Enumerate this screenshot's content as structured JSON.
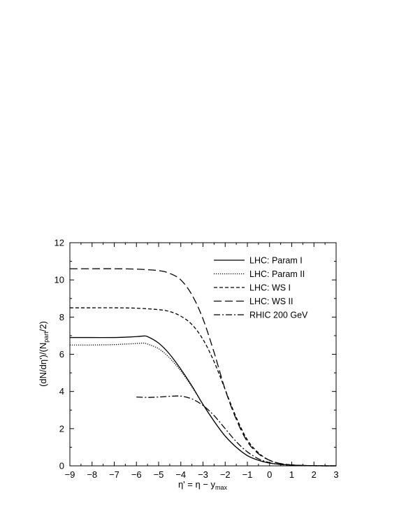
{
  "chart_data": {
    "type": "line",
    "xlim": [
      -9,
      3
    ],
    "ylim": [
      0,
      12
    ],
    "x_ticks": [
      "−9",
      "−8",
      "−7",
      "−6",
      "−5",
      "−4",
      "−3",
      "−2",
      "−1",
      "0",
      "1",
      "2",
      "3"
    ],
    "y_ticks": [
      "0",
      "2",
      "4",
      "6",
      "8",
      "10",
      "12"
    ],
    "xlabel": "η' = η − y",
    "xlabel_sub": "max",
    "ylabel_pre": "(dN/dη')/(N",
    "ylabel_sub": "part",
    "ylabel_post": "/2)",
    "grid": false,
    "legend_position": "top-right",
    "series": [
      {
        "name": "LHC: Param I",
        "dash": "solid",
        "x": [
          -9,
          -8,
          -7,
          -6.5,
          -6,
          -5.7,
          -5.5,
          -5,
          -4.5,
          -4,
          -3.5,
          -3,
          -2.5,
          -2,
          -1.5,
          -1,
          -0.5,
          0,
          0.5,
          1,
          1.5,
          2,
          2.5,
          3
        ],
        "y": [
          6.9,
          6.9,
          6.9,
          6.92,
          6.95,
          6.98,
          6.95,
          6.6,
          6.0,
          5.2,
          4.3,
          3.3,
          2.4,
          1.6,
          1.0,
          0.55,
          0.3,
          0.15,
          0.08,
          0.04,
          0.02,
          0.01,
          0.0,
          0.0
        ]
      },
      {
        "name": "LHC: Param II",
        "dash": "dotted",
        "x": [
          -9,
          -8,
          -7,
          -6.5,
          -6,
          -5.7,
          -5.5,
          -5,
          -4.5,
          -4,
          -3.5,
          -3,
          -2.5,
          -2,
          -1.5,
          -1,
          -0.5,
          0,
          0.5,
          1,
          1.5,
          2,
          2.5,
          3
        ],
        "y": [
          6.5,
          6.5,
          6.52,
          6.55,
          6.58,
          6.6,
          6.55,
          6.3,
          5.8,
          5.1,
          4.25,
          3.3,
          2.4,
          1.6,
          1.0,
          0.55,
          0.3,
          0.15,
          0.08,
          0.04,
          0.02,
          0.01,
          0.0,
          0.0
        ]
      },
      {
        "name": "LHC: WS I",
        "dash": "short-dash",
        "x": [
          -9,
          -8,
          -7,
          -6,
          -5,
          -4.5,
          -4,
          -3.5,
          -3,
          -2.5,
          -2,
          -1.5,
          -1,
          -0.5,
          0,
          0.5,
          1,
          1.5,
          2,
          2.5,
          3
        ],
        "y": [
          8.5,
          8.5,
          8.5,
          8.48,
          8.4,
          8.3,
          8.05,
          7.6,
          6.8,
          5.6,
          4.1,
          2.6,
          1.4,
          0.7,
          0.3,
          0.12,
          0.05,
          0.02,
          0.01,
          0.0,
          0.0
        ]
      },
      {
        "name": "LHC: WS II",
        "dash": "long-dash",
        "x": [
          -9,
          -8,
          -7,
          -6,
          -5,
          -4.5,
          -4,
          -3.5,
          -3,
          -2.5,
          -2,
          -1.5,
          -1,
          -0.5,
          0,
          0.5,
          1,
          1.5,
          2,
          2.5,
          3
        ],
        "y": [
          10.6,
          10.6,
          10.6,
          10.58,
          10.5,
          10.35,
          10.0,
          9.2,
          7.9,
          6.1,
          4.1,
          2.5,
          1.3,
          0.65,
          0.3,
          0.12,
          0.05,
          0.02,
          0.01,
          0.0,
          0.0
        ]
      },
      {
        "name": "RHIC 200 GeV",
        "dash": "dash-dot",
        "x": [
          -6,
          -5.5,
          -5,
          -4.5,
          -4,
          -3.5,
          -3,
          -2.5,
          -2,
          -1.5,
          -1,
          -0.5,
          0,
          0.5,
          1,
          1.5,
          2,
          2.5,
          3
        ],
        "y": [
          3.7,
          3.68,
          3.7,
          3.74,
          3.75,
          3.6,
          3.25,
          2.7,
          2.0,
          1.3,
          0.75,
          0.38,
          0.17,
          0.07,
          0.03,
          0.01,
          0.0,
          0.0,
          0.0
        ]
      }
    ]
  }
}
